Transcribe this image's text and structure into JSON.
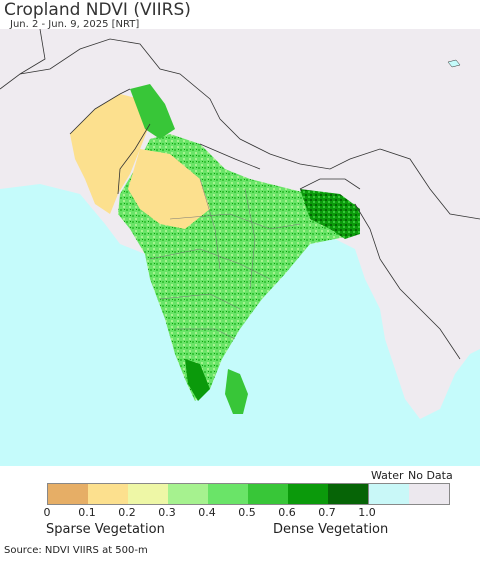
{
  "header": {
    "title": "Cropland NDVI (VIIRS)",
    "subtitle": "Jun. 2 - Jun. 9, 2025 [NRT]"
  },
  "legend": {
    "swatches": [
      {
        "color": "#e6ae66"
      },
      {
        "color": "#fce08e"
      },
      {
        "color": "#eef7a6"
      },
      {
        "color": "#a6f28f"
      },
      {
        "color": "#6ae468"
      },
      {
        "color": "#38c638"
      },
      {
        "color": "#0b9a0b"
      },
      {
        "color": "#066406"
      },
      {
        "color": "#c9f8f8"
      },
      {
        "color": "#ece8ee"
      }
    ],
    "tick_labels": [
      "0",
      "0.1",
      "0.2",
      "0.3",
      "0.4",
      "0.5",
      "0.6",
      "0.7",
      "1.0"
    ],
    "water_label": "Water",
    "nodata_label": "No Data",
    "sparse_label": "Sparse Vegetation",
    "dense_label": "Dense Vegetation"
  },
  "footer": {
    "source": "Source: NDVI VIIRS at 500-m"
  },
  "map_colors": {
    "ocean": "#c5fbfb",
    "no_data_land": "#efebf0",
    "border": "#333333"
  }
}
